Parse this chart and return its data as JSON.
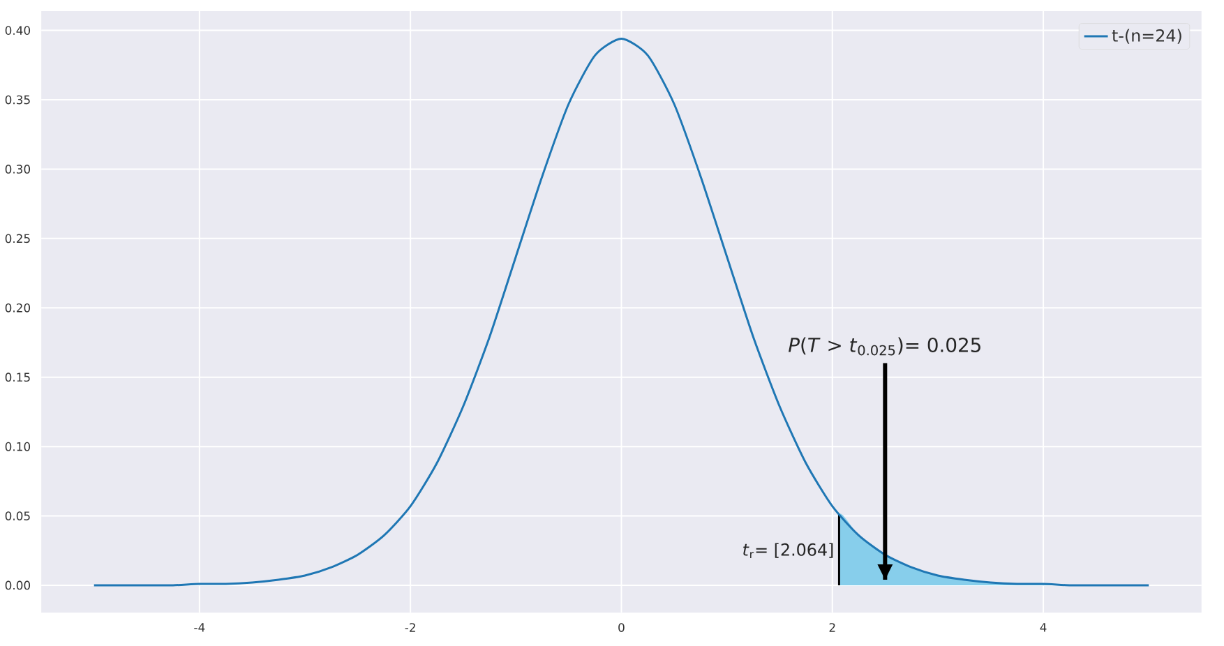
{
  "chart_data": {
    "type": "line",
    "series": [
      {
        "type": "area",
        "color": "#87ceeb",
        "x": [
          2.064,
          2.25,
          2.5,
          2.75,
          3,
          3.25,
          3.5,
          3.75,
          4,
          4.25,
          4.5,
          4.75,
          5
        ],
        "values": [
          0.051,
          0.036,
          0.022,
          0.013,
          0.007,
          0.004,
          0.002,
          0.001,
          0.001,
          0.0,
          0.0,
          0.0,
          0.0
        ]
      },
      {
        "color": "#000000",
        "x": [
          2.064,
          2.064
        ],
        "values": [
          0,
          0.051
        ]
      },
      {
        "name": "t-(n=24)",
        "color": "#1f77b4",
        "x": [
          -5,
          -4.75,
          -4.5,
          -4.25,
          -4,
          -3.75,
          -3.5,
          -3.25,
          -3,
          -2.75,
          -2.5,
          -2.25,
          -2,
          -1.75,
          -1.5,
          -1.25,
          -1,
          -0.75,
          -0.5,
          -0.25,
          0,
          0.25,
          0.5,
          0.75,
          1,
          1.25,
          1.5,
          1.75,
          2,
          2.25,
          2.5,
          2.75,
          3,
          3.25,
          3.5,
          3.75,
          4,
          4.25,
          4.5,
          4.75,
          5
        ],
        "values": [
          0.0,
          0.0,
          0.0,
          0.0,
          0.001,
          0.001,
          0.002,
          0.004,
          0.007,
          0.013,
          0.022,
          0.036,
          0.057,
          0.088,
          0.129,
          0.179,
          0.237,
          0.295,
          0.347,
          0.382,
          0.394,
          0.382,
          0.347,
          0.295,
          0.237,
          0.179,
          0.129,
          0.088,
          0.057,
          0.036,
          0.022,
          0.013,
          0.007,
          0.004,
          0.002,
          0.001,
          0.001,
          0.0,
          0.0,
          0.0,
          0.0
        ]
      }
    ],
    "annotations": [
      {
        "text": "*P*(*T* > *t*$_{0.025}$)= 0.025",
        "x": 2.5,
        "y": 0.004
      },
      {
        "text": "*t*$_{r}$= [2.064]",
        "x": 2.064,
        "y": 0.025
      }
    ],
    "xlim": [
      -5.5,
      5.5
    ],
    "ylim": [
      -0.0197,
      0.4139
    ],
    "xticks": [
      -4,
      -2,
      0,
      2,
      4
    ],
    "yticks": [
      {
        "value": 0,
        "label": "0.00"
      },
      {
        "value": 0.05,
        "label": "0.05"
      },
      {
        "value": 0.1,
        "label": "0.10"
      },
      {
        "value": 0.15,
        "label": "0.15"
      },
      {
        "value": 0.2,
        "label": "0.20"
      },
      {
        "value": 0.25,
        "label": "0.25"
      },
      {
        "value": 0.3,
        "label": "0.30"
      },
      {
        "value": 0.35,
        "label": "0.35"
      },
      {
        "value": 0.4,
        "label": "0.40"
      }
    ],
    "grid": true,
    "legend": "top right"
  }
}
